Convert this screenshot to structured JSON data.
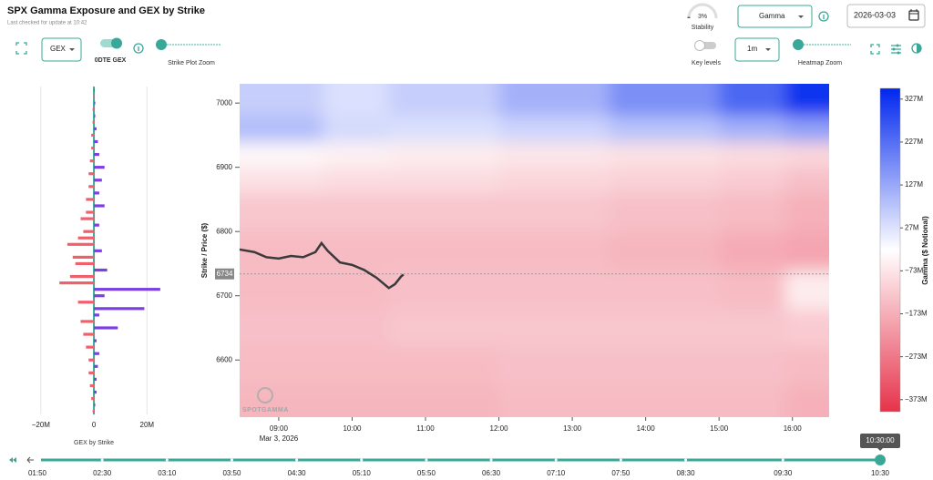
{
  "header": {
    "title": "SPX Gamma Exposure and GEX by Strike",
    "subtitle": "Last checked for update at 10:42"
  },
  "controls": {
    "gex_select": "GEX",
    "odte_label": "0DTE GEX",
    "strike_zoom_label": "Strike Plot Zoom",
    "stability": {
      "value": 3,
      "label": "3%",
      "caption": "Stability"
    },
    "metric_select": "Gamma",
    "date": "2026-03-03",
    "key_levels": "Key levels",
    "interval_select": "1m",
    "heatmap_zoom_label": "Heatmap Zoom"
  },
  "chart_data": [
    {
      "type": "hbar",
      "x_label": "GEX by Strike",
      "xlim": [
        -22,
        35
      ],
      "xticks": [
        {
          "value": -20,
          "label": "−20M"
        },
        0,
        {
          "value": 20,
          "label": "20M"
        }
      ],
      "ylim": [
        6511,
        7030
      ],
      "strikes": [
        6520,
        6530,
        6540,
        6550,
        6560,
        6570,
        6580,
        6590,
        6600,
        6610,
        6620,
        6630,
        6640,
        6650,
        6660,
        6670,
        6680,
        6690,
        6700,
        6710,
        6720,
        6730,
        6740,
        6750,
        6760,
        6770,
        6780,
        6790,
        6800,
        6810,
        6820,
        6830,
        6840,
        6850,
        6860,
        6870,
        6880,
        6890,
        6900,
        6910,
        6920,
        6930,
        6940,
        6950,
        6960,
        6970,
        6980,
        6990,
        7000,
        7010,
        7020
      ],
      "values": [
        -0.5,
        0.5,
        -1,
        1,
        -1.5,
        1,
        -2,
        1.5,
        -2,
        2,
        -3,
        1,
        -4,
        9,
        -5,
        2,
        19,
        -6,
        4,
        25,
        -13,
        -9,
        5,
        -7,
        -8,
        3,
        -10,
        -6,
        -4,
        2,
        -5,
        -3,
        4,
        -3,
        2,
        -2,
        3,
        -2,
        4,
        -1.5,
        2,
        -1,
        1.5,
        -1,
        1,
        -0.5,
        0.5,
        -0.5,
        0.5,
        -0.3,
        0.3
      ],
      "positive_color": "#7b3fe4",
      "negative_color": "#f0606c",
      "axis_color": "#3aa898"
    },
    {
      "type": "heatmap",
      "y_label": "Strike / Price ($)",
      "date_label": "Mar 3, 2026",
      "watermark": "SPOTGAMMA",
      "xlim": [
        8.467,
        16.5
      ],
      "xticks": [
        {
          "value": 9,
          "label": "09:00"
        },
        {
          "value": 10,
          "label": "10:00"
        },
        {
          "value": 11,
          "label": "11:00"
        },
        {
          "value": 12,
          "label": "12:00"
        },
        {
          "value": 13,
          "label": "13:00"
        },
        {
          "value": 14,
          "label": "14:00"
        },
        {
          "value": 15,
          "label": "15:00"
        },
        {
          "value": 16,
          "label": "16:00"
        }
      ],
      "ylim": [
        6511,
        7030
      ],
      "yticks": [
        6600,
        6700,
        6800,
        6900,
        7000
      ],
      "grid_x_edges": [
        8.467,
        9.6,
        10.5,
        12,
        13.5,
        15,
        15.9,
        16.5
      ],
      "grid_y_edges": [
        6511,
        6560,
        6620,
        6680,
        6740,
        6800,
        6860,
        6900,
        6940,
        6980,
        7030
      ],
      "grid_values": [
        [
          -160,
          -160,
          -160,
          -150,
          -150,
          -150,
          -170
        ],
        [
          -150,
          -150,
          -150,
          -140,
          -140,
          -140,
          -150
        ],
        [
          -140,
          -140,
          -130,
          -130,
          -130,
          -130,
          -120
        ],
        [
          -150,
          -150,
          -140,
          -140,
          -140,
          -150,
          -60
        ],
        [
          -150,
          -150,
          -150,
          -150,
          -160,
          -180,
          -190
        ],
        [
          -130,
          -130,
          -130,
          -130,
          -140,
          -150,
          -170
        ],
        [
          -80,
          -90,
          -90,
          -100,
          -110,
          -120,
          -140
        ],
        [
          -40,
          -50,
          -60,
          -70,
          -80,
          -90,
          -100
        ],
        [
          90,
          40,
          30,
          50,
          80,
          110,
          140
        ],
        [
          60,
          30,
          60,
          110,
          170,
          240,
          327
        ]
      ],
      "price_x": [
        8.467,
        8.667,
        8.833,
        9.0,
        9.167,
        9.333,
        9.5,
        9.583,
        9.667,
        9.833,
        10.0,
        10.167,
        10.333,
        10.5,
        10.583,
        10.667,
        10.7
      ],
      "price_values": [
        6772,
        6768,
        6760,
        6758,
        6762,
        6760,
        6768,
        6782,
        6770,
        6752,
        6748,
        6740,
        6728,
        6712,
        6718,
        6730,
        6733
      ],
      "price_color": "#3a3a3a",
      "current_price": 6734,
      "colorbar_label": "Gamma ($ Notional)",
      "clim": [
        -401,
        352
      ],
      "cticks": [
        {
          "value": 327,
          "label": "327M"
        },
        {
          "value": 227,
          "label": "227M"
        },
        {
          "value": 127,
          "label": "127M"
        },
        {
          "value": 27,
          "label": "27M"
        },
        {
          "value": -73,
          "label": "−73M"
        },
        {
          "value": -173,
          "label": "−173M"
        },
        {
          "value": -273,
          "label": "−273M"
        },
        {
          "value": -373,
          "label": "−373M"
        }
      ],
      "colorscale": {
        "low": "#e6334b",
        "mid": "#ffffff",
        "high": "#0026ee"
      }
    }
  ],
  "timeline": {
    "xlim": [
      110,
      630
    ],
    "ticks": [
      {
        "value": 110,
        "label": "01:50"
      },
      {
        "value": 150,
        "label": "02:30"
      },
      {
        "value": 190,
        "label": "03:10"
      },
      {
        "value": 230,
        "label": "03:50"
      },
      {
        "value": 270,
        "label": "04:30"
      },
      {
        "value": 310,
        "label": "05:10"
      },
      {
        "value": 350,
        "label": "05:50"
      },
      {
        "value": 390,
        "label": "06:30"
      },
      {
        "value": 430,
        "label": "07:10"
      },
      {
        "value": 470,
        "label": "07:50"
      },
      {
        "value": 510,
        "label": "08:30"
      },
      {
        "value": 570,
        "label": "09:30"
      },
      {
        "value": 630,
        "label": "10:30"
      }
    ],
    "current": {
      "value": 630,
      "label": "10:30:00"
    }
  }
}
